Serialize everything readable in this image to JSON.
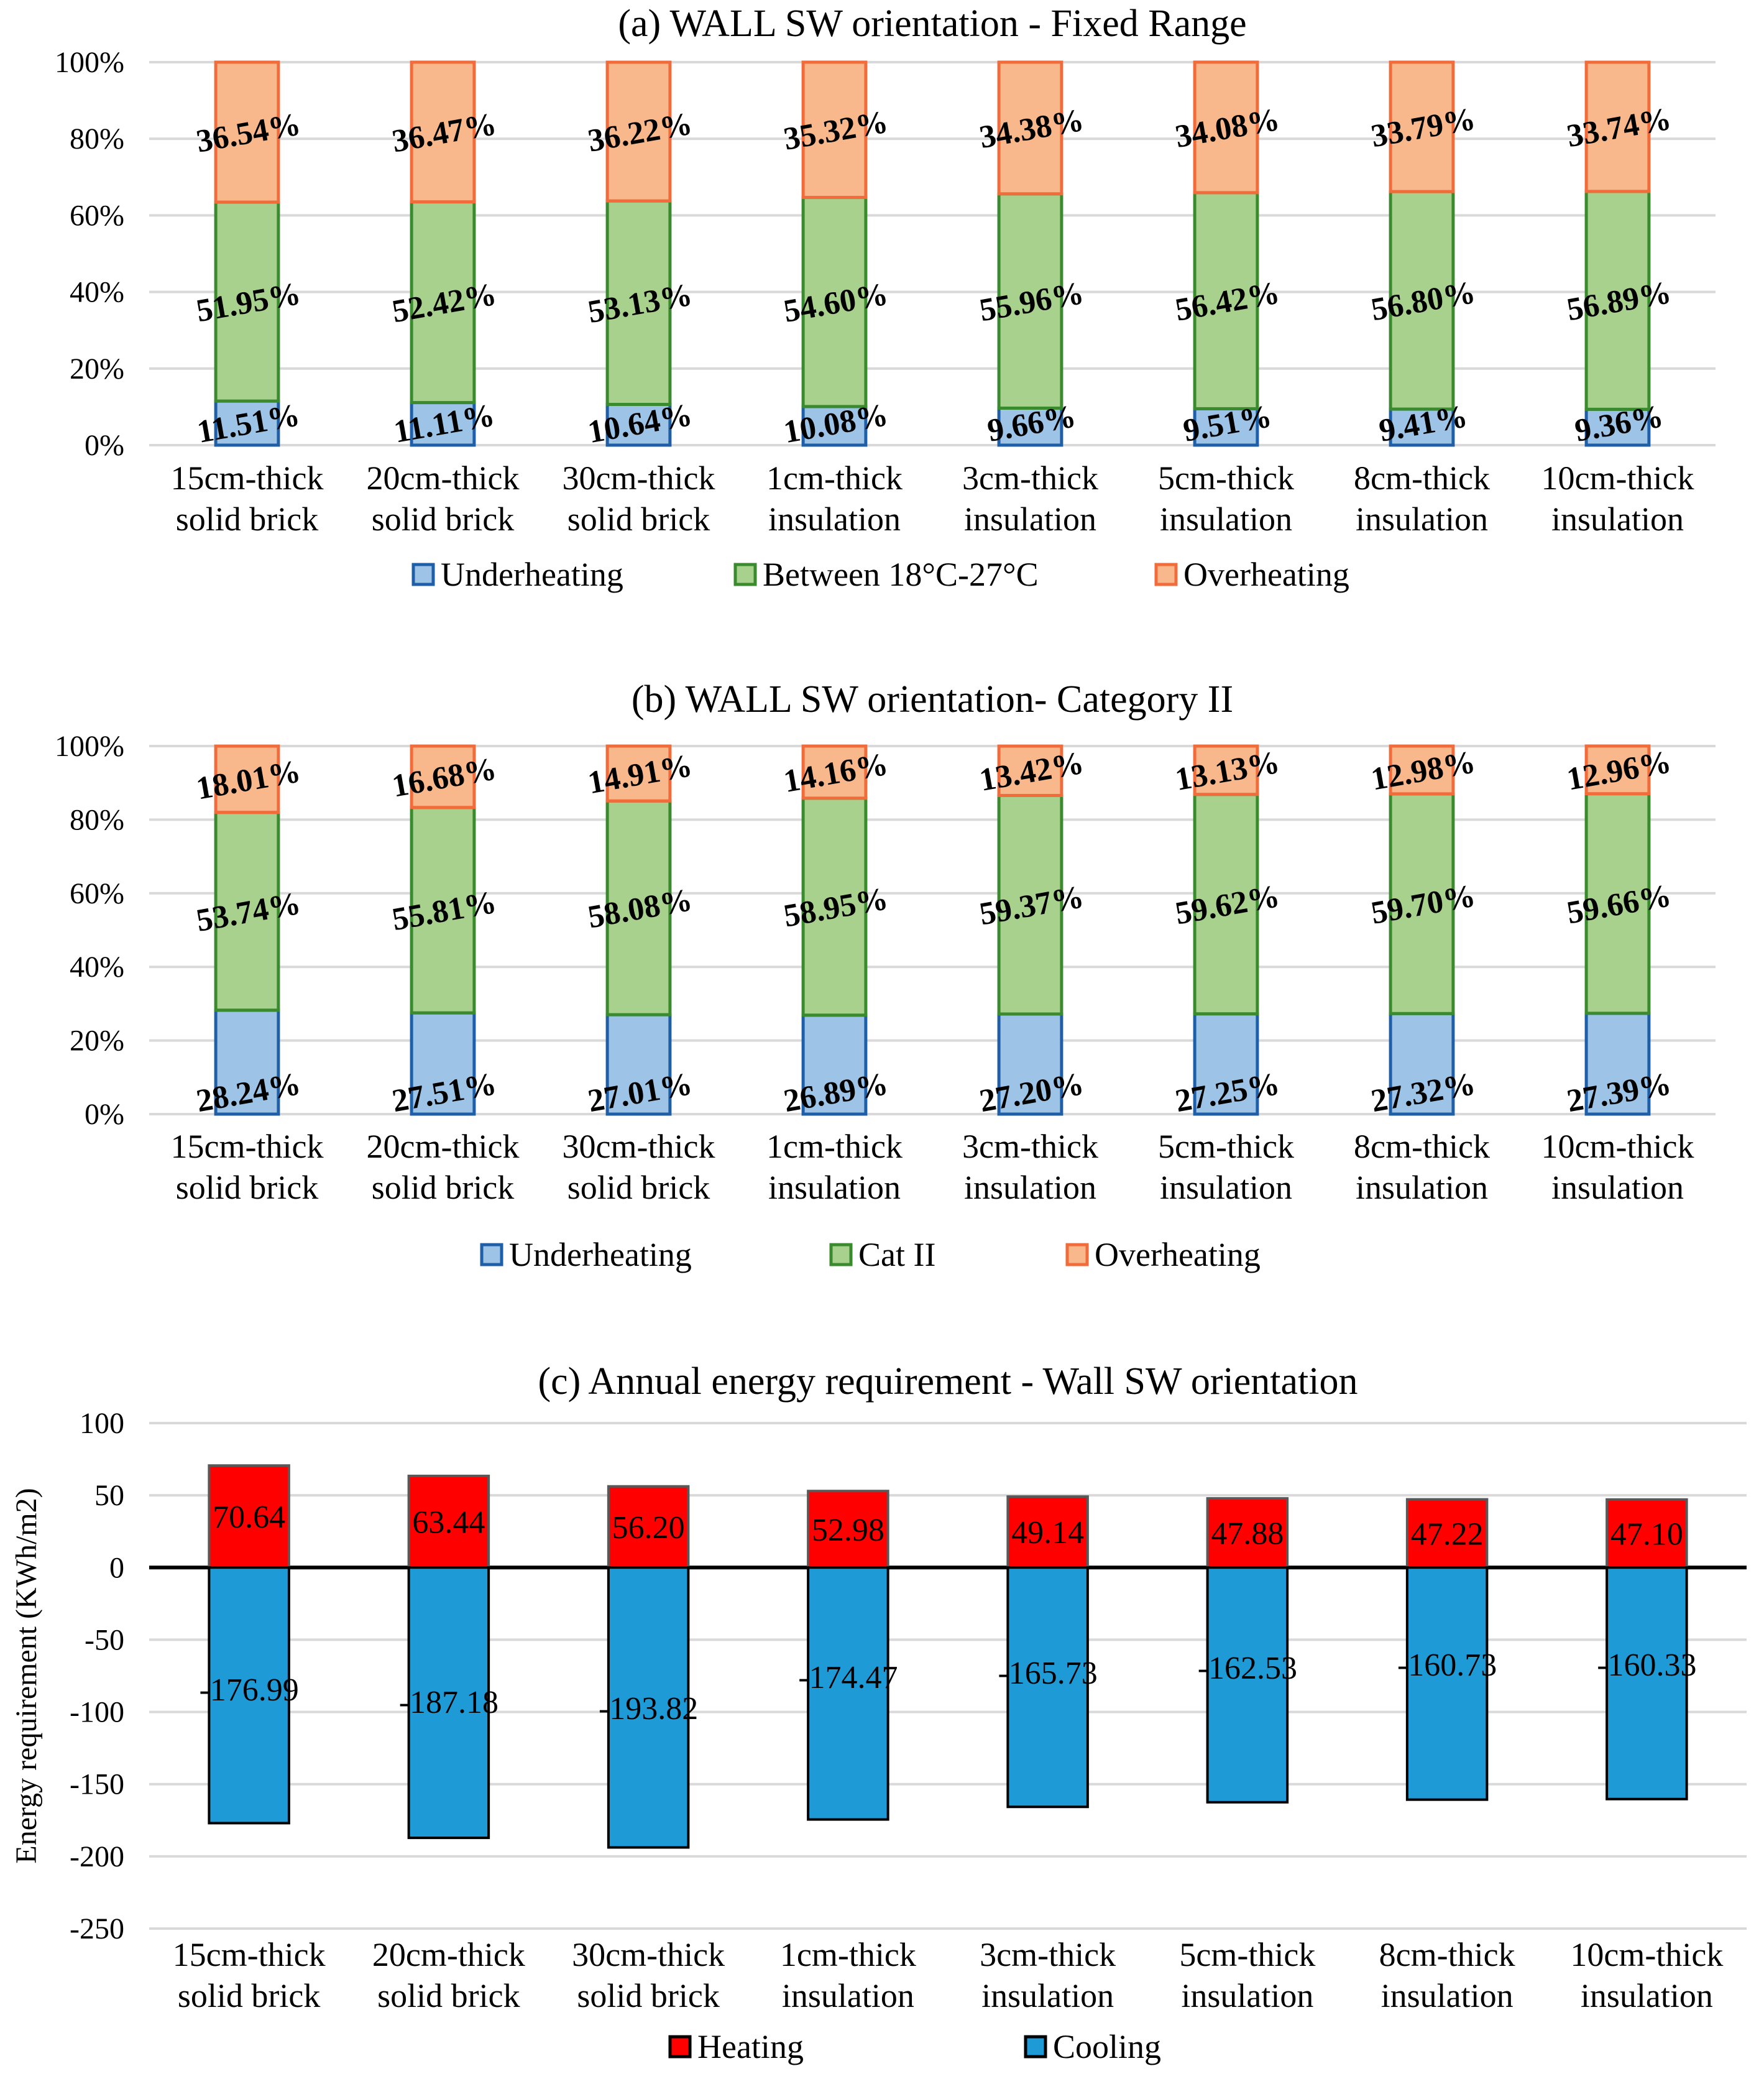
{
  "colors": {
    "underheating_fill": "#9DC3E6",
    "underheating_stroke": "#1F5FA8",
    "comfort_fill": "#A9D18E",
    "comfort_stroke": "#3A8A2E",
    "overheating_fill": "#F8B88B",
    "overheating_stroke": "#F26B3A",
    "heating_fill": "#FF0000",
    "cooling_fill": "#1E9BD7",
    "gridline": "#D9D9D9"
  },
  "categories": [
    [
      "15cm-thick",
      "solid brick"
    ],
    [
      "20cm-thick",
      "solid brick"
    ],
    [
      "30cm-thick",
      "solid brick"
    ],
    [
      "1cm-thick",
      "insulation"
    ],
    [
      "3cm-thick",
      "insulation"
    ],
    [
      "5cm-thick",
      "insulation"
    ],
    [
      "8cm-thick",
      "insulation"
    ],
    [
      "10cm-thick",
      "insulation"
    ]
  ],
  "chart_data": [
    {
      "type": "bar",
      "stacked": true,
      "title": "(a) WALL SW orientation - Fixed Range",
      "ylim": [
        0,
        100
      ],
      "yticks": [
        "0%",
        "20%",
        "40%",
        "60%",
        "80%",
        "100%"
      ],
      "series": [
        {
          "name": "Underheating",
          "values": [
            11.51,
            11.11,
            10.64,
            10.08,
            9.66,
            9.51,
            9.41,
            9.36
          ],
          "labels": [
            "11.51%",
            "11.11%",
            "10.64%",
            "10.08%",
            "9.66%",
            "9.51%",
            "9.41%",
            "9.36%"
          ]
        },
        {
          "name": "Between 18°C-27°C",
          "values": [
            51.95,
            52.42,
            53.13,
            54.6,
            55.96,
            56.42,
            56.8,
            56.89
          ],
          "labels": [
            "51.95%",
            "52.42%",
            "53.13%",
            "54.60%",
            "55.96%",
            "56.42%",
            "56.80%",
            "56.89%"
          ]
        },
        {
          "name": "Overheating",
          "values": [
            36.54,
            36.47,
            36.22,
            35.32,
            34.38,
            34.08,
            33.79,
            33.74
          ],
          "labels": [
            "36.54%",
            "36.47%",
            "36.22%",
            "35.32%",
            "34.38%",
            "34.08%",
            "33.79%",
            "33.74%"
          ]
        }
      ],
      "legend": [
        "Underheating",
        "Between 18°C-27°C",
        "Overheating"
      ]
    },
    {
      "type": "bar",
      "stacked": true,
      "title": "(b) WALL SW orientation- Category II",
      "ylim": [
        0,
        100
      ],
      "yticks": [
        "0%",
        "20%",
        "40%",
        "60%",
        "80%",
        "100%"
      ],
      "series": [
        {
          "name": "Underheating",
          "values": [
            28.24,
            27.51,
            27.01,
            26.89,
            27.2,
            27.25,
            27.32,
            27.39
          ],
          "labels": [
            "28.24%",
            "27.51%",
            "27.01%",
            "26.89%",
            "27.20%",
            "27.25%",
            "27.32%",
            "27.39%"
          ]
        },
        {
          "name": "Cat II",
          "values": [
            53.74,
            55.81,
            58.08,
            58.95,
            59.37,
            59.62,
            59.7,
            59.66
          ],
          "labels": [
            "53.74%",
            "55.81%",
            "58.08%",
            "58.95%",
            "59.37%",
            "59.62%",
            "59.70%",
            "59.66%"
          ]
        },
        {
          "name": "Overheating",
          "values": [
            18.01,
            16.68,
            14.91,
            14.16,
            13.42,
            13.13,
            12.98,
            12.96
          ],
          "labels": [
            "18.01%",
            "16.68%",
            "14.91%",
            "14.16%",
            "13.42%",
            "13.13%",
            "12.98%",
            "12.96%"
          ]
        }
      ],
      "legend": [
        "Underheating",
        "Cat II",
        "Overheating"
      ]
    },
    {
      "type": "bar",
      "stacked": false,
      "title": "(c) Annual energy requirement - Wall SW orientation",
      "ylabel": "Energy requirement (KWh/m2)",
      "ylim": [
        -250,
        100
      ],
      "yticks": [
        "100",
        "50",
        "0",
        "-50",
        "-100",
        "-150",
        "-200",
        "-250"
      ],
      "series": [
        {
          "name": "Heating",
          "values": [
            70.64,
            63.44,
            56.2,
            52.98,
            49.14,
            47.88,
            47.22,
            47.1
          ],
          "labels": [
            "70.64",
            "63.44",
            "56.20",
            "52.98",
            "49.14",
            "47.88",
            "47.22",
            "47.10"
          ]
        },
        {
          "name": "Cooling",
          "values": [
            -176.99,
            -187.18,
            -193.82,
            -174.47,
            -165.73,
            -162.53,
            -160.73,
            -160.33
          ],
          "labels": [
            "-176.99",
            "-187.18",
            "-193.82",
            "-174.47",
            "-165.73",
            "-162.53",
            "-160.73",
            "-160.33"
          ]
        }
      ],
      "legend": [
        "Heating",
        "Cooling"
      ]
    }
  ]
}
